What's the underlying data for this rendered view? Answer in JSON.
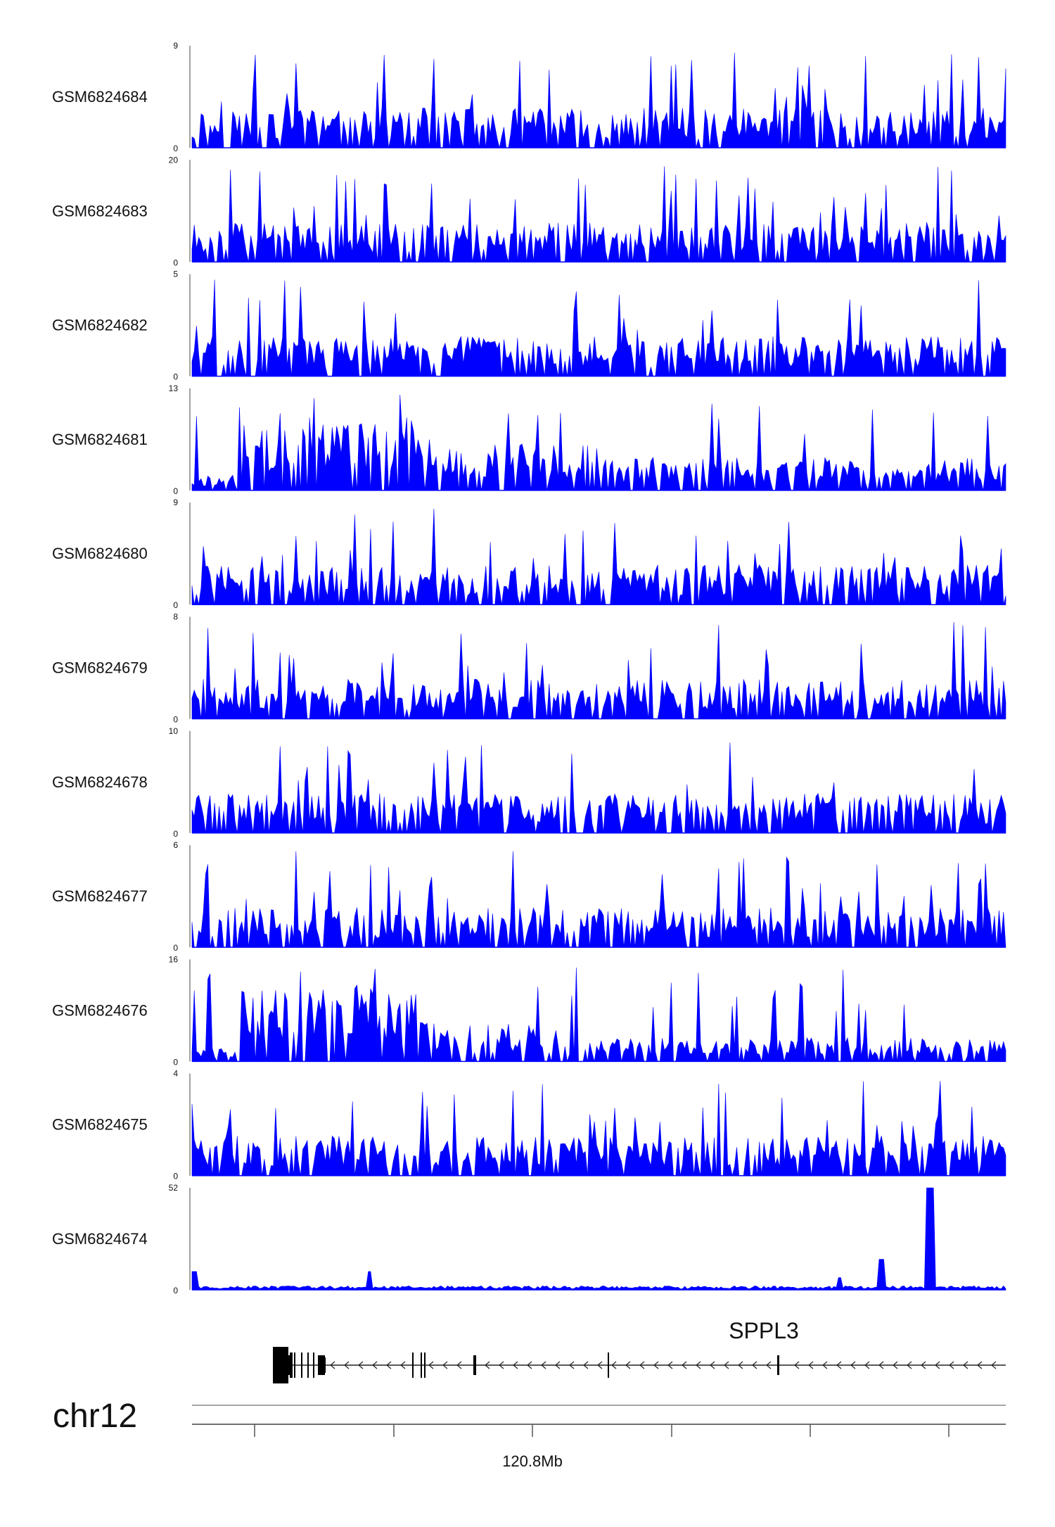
{
  "chart_data": {
    "type": "area",
    "chromosome": "chr12",
    "series_color": "#0000ff",
    "tracks": [
      {
        "name": "GSM6824684",
        "ymin": "0",
        "ymax": "9",
        "max": 9
      },
      {
        "name": "GSM6824683",
        "ymin": "0",
        "ymax": "20",
        "max": 20
      },
      {
        "name": "GSM6824682",
        "ymin": "0",
        "ymax": "5",
        "max": 5
      },
      {
        "name": "GSM6824681",
        "ymin": "0",
        "ymax": "13",
        "max": 13
      },
      {
        "name": "GSM6824680",
        "ymin": "0",
        "ymax": "9",
        "max": 9
      },
      {
        "name": "GSM6824679",
        "ymin": "0",
        "ymax": "8",
        "max": 8
      },
      {
        "name": "GSM6824678",
        "ymin": "0",
        "ymax": "10",
        "max": 10
      },
      {
        "name": "GSM6824677",
        "ymin": "0",
        "ymax": "6",
        "max": 6
      },
      {
        "name": "GSM6824676",
        "ymin": "0",
        "ymax": "16",
        "max": 16
      },
      {
        "name": "GSM6824675",
        "ymin": "0",
        "ymax": "4",
        "max": 4
      },
      {
        "name": "GSM6824674",
        "ymin": "0",
        "ymax": "52",
        "max": 52
      }
    ],
    "gene": {
      "name": "SPPL3",
      "strand": "-"
    },
    "x_tick_label": "120.8Mb"
  }
}
